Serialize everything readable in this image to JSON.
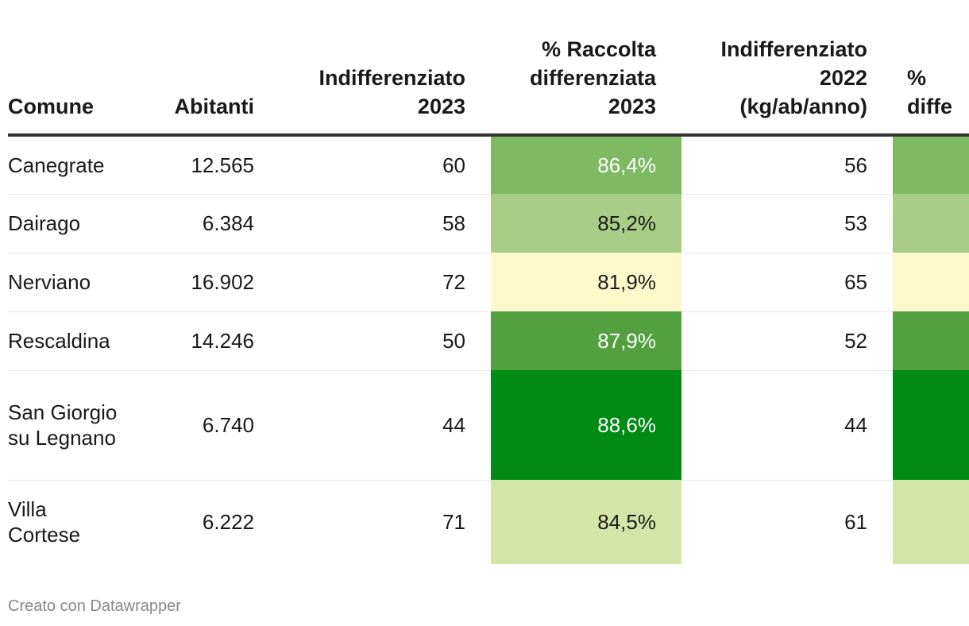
{
  "chart_data": {
    "type": "table",
    "columns": [
      "Comune",
      "Abitanti",
      "Indifferenziato\n2023",
      "% Raccolta\ndifferenziata\n2023",
      "Indifferenziato\n2022\n(kg/ab/anno)",
      "%\ndiffe"
    ],
    "rows": [
      {
        "comune": "Canegrate",
        "abitanti": "12.565",
        "ind2023": "60",
        "perc2023": "86,4%",
        "ind2022": "56",
        "perc2022": ""
      },
      {
        "comune": "Dairago",
        "abitanti": "6.384",
        "ind2023": "58",
        "perc2023": "85,2%",
        "ind2022": "53",
        "perc2022": ""
      },
      {
        "comune": "Nerviano",
        "abitanti": "16.902",
        "ind2023": "72",
        "perc2023": "81,9%",
        "ind2022": "65",
        "perc2022": ""
      },
      {
        "comune": "Rescaldina",
        "abitanti": "14.246",
        "ind2023": "50",
        "perc2023": "87,9%",
        "ind2022": "52",
        "perc2022": ""
      },
      {
        "comune": "San Giorgio su Legnano",
        "abitanti": "6.740",
        "ind2023": "44",
        "perc2023": "88,6%",
        "ind2022": "44",
        "perc2022": ""
      },
      {
        "comune": "Villa Cortese",
        "abitanti": "6.222",
        "ind2023": "71",
        "perc2023": "84,5%",
        "ind2022": "61",
        "perc2022": ""
      }
    ],
    "heat_colors_2023": [
      "#7fb961",
      "#a8cd86",
      "#fdf9cb",
      "#52a03f",
      "#008b15",
      "#d4e5a8"
    ],
    "heat_text_colors_2023": [
      "#ffffff",
      "#1a1a1a",
      "#1a1a1a",
      "#ffffff",
      "#ffffff",
      "#1a1a1a"
    ],
    "heat_colors_2022": [
      "#7fb961",
      "#a8cd86",
      "#fdf9cb",
      "#52a03f",
      "#008b15",
      "#d4e5a8"
    ]
  },
  "footer": {
    "credit": "Creato con Datawrapper"
  }
}
